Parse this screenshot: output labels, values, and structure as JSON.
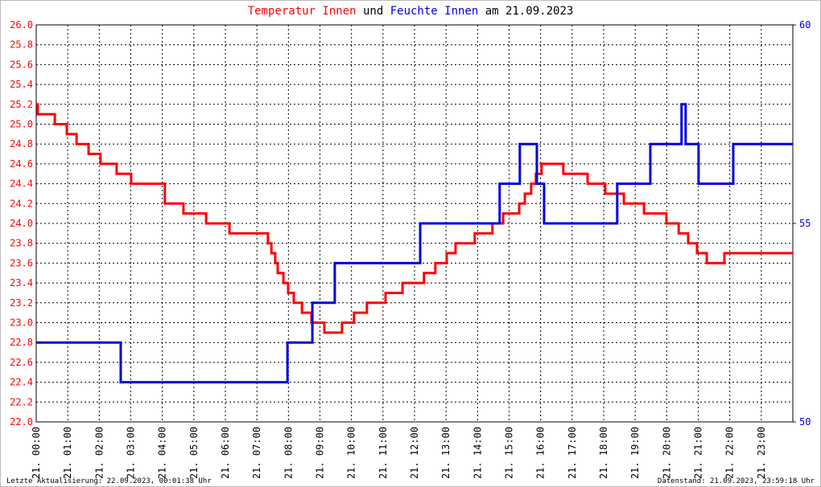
{
  "chart_data": {
    "type": "line",
    "step": true,
    "title_parts": [
      "und",
      "am 21.09.2023"
    ],
    "footer_left": "Letzte Aktualisierung: 22.09.2023, 00:01:38 Uhr",
    "footer_right": "Datenstand: 21.09.2023, 23:59:18 Uhr",
    "grid": true,
    "xlim": [
      0,
      24
    ],
    "xticks": [
      {
        "value": 0,
        "label": "21. 00:00"
      },
      {
        "value": 1,
        "label": "21. 01:00"
      },
      {
        "value": 2,
        "label": "21. 02:00"
      },
      {
        "value": 3,
        "label": "21. 03:00"
      },
      {
        "value": 4,
        "label": "21. 04:00"
      },
      {
        "value": 5,
        "label": "21. 05:00"
      },
      {
        "value": 6,
        "label": "21. 06:00"
      },
      {
        "value": 7,
        "label": "21. 07:00"
      },
      {
        "value": 8,
        "label": "21. 08:00"
      },
      {
        "value": 9,
        "label": "21. 09:00"
      },
      {
        "value": 10,
        "label": "21. 10:00"
      },
      {
        "value": 11,
        "label": "21. 11:00"
      },
      {
        "value": 12,
        "label": "21. 12:00"
      },
      {
        "value": 13,
        "label": "21. 13:00"
      },
      {
        "value": 14,
        "label": "21. 14:00"
      },
      {
        "value": 15,
        "label": "21. 15:00"
      },
      {
        "value": 16,
        "label": "21. 16:00"
      },
      {
        "value": 17,
        "label": "21. 17:00"
      },
      {
        "value": 18,
        "label": "21. 18:00"
      },
      {
        "value": 19,
        "label": "21. 19:00"
      },
      {
        "value": 20,
        "label": "21. 20:00"
      },
      {
        "value": 21,
        "label": "21. 21:00"
      },
      {
        "value": 22,
        "label": "21. 22:00"
      },
      {
        "value": 23,
        "label": "21. 23:00"
      }
    ],
    "ylim": [
      22,
      26
    ],
    "yticks": [
      {
        "value": 22,
        "label": "22.0"
      },
      {
        "value": 22.2,
        "label": "22.2"
      },
      {
        "value": 22.4,
        "label": "22.4"
      },
      {
        "value": 22.6,
        "label": "22.6"
      },
      {
        "value": 22.8,
        "label": "22.8"
      },
      {
        "value": 23,
        "label": "23.0"
      },
      {
        "value": 23.2,
        "label": "23.2"
      },
      {
        "value": 23.4,
        "label": "23.4"
      },
      {
        "value": 23.6,
        "label": "23.6"
      },
      {
        "value": 23.8,
        "label": "23.8"
      },
      {
        "value": 24,
        "label": "24.0"
      },
      {
        "value": 24.2,
        "label": "24.2"
      },
      {
        "value": 24.4,
        "label": "24.4"
      },
      {
        "value": 24.6,
        "label": "24.6"
      },
      {
        "value": 24.8,
        "label": "24.8"
      },
      {
        "value": 25,
        "label": "25.0"
      },
      {
        "value": 25.2,
        "label": "25.2"
      },
      {
        "value": 25.4,
        "label": "25.4"
      },
      {
        "value": 25.6,
        "label": "25.6"
      },
      {
        "value": 25.8,
        "label": "25.8"
      },
      {
        "value": 26,
        "label": "26.0"
      }
    ],
    "y2lim": [
      50,
      60
    ],
    "y2ticks": [
      50,
      55,
      60
    ],
    "series": [
      {
        "name": "Temperatur Innen",
        "color": "#ff0000",
        "axis": "y",
        "x": [
          0,
          0.05,
          0.59,
          0.97,
          1.28,
          1.66,
          2.04,
          2.55,
          3.01,
          4.08,
          4.67,
          5.39,
          6.13,
          7.35,
          7.46,
          7.58,
          7.66,
          7.84,
          7.99,
          8.17,
          8.43,
          8.73,
          9.14,
          9.7,
          10.08,
          10.49,
          11.08,
          11.62,
          12.3,
          12.66,
          13.02,
          13.3,
          13.91,
          14.47,
          14.81,
          15.32,
          15.5,
          15.7,
          15.85,
          16.03,
          16.72,
          17.49,
          18.05,
          18.64,
          19.28,
          19.99,
          20.38,
          20.68,
          20.96,
          21.27,
          21.83,
          24
        ],
        "values": [
          25.2,
          25.1,
          25.0,
          24.9,
          24.8,
          24.7,
          24.6,
          24.5,
          24.4,
          24.2,
          24.1,
          24.0,
          23.9,
          23.8,
          23.7,
          23.6,
          23.5,
          23.4,
          23.3,
          23.2,
          23.1,
          23.0,
          22.9,
          23.0,
          23.1,
          23.2,
          23.3,
          23.4,
          23.5,
          23.6,
          23.7,
          23.8,
          23.9,
          24.0,
          24.1,
          24.2,
          24.3,
          24.4,
          24.5,
          24.6,
          24.5,
          24.4,
          24.3,
          24.2,
          24.1,
          24.0,
          23.9,
          23.8,
          23.7,
          23.6,
          23.7,
          23.7
        ]
      },
      {
        "name": "Feuchte Innen",
        "color": "#0000dd",
        "axis": "y2",
        "x": [
          0,
          2.68,
          7.97,
          8.76,
          9.47,
          12.18,
          14.7,
          15.34,
          15.88,
          16.11,
          18.43,
          19.48,
          20.47,
          20.6,
          21.01,
          22.11,
          24
        ],
        "values": [
          52,
          51,
          52,
          53,
          54,
          55,
          56,
          57,
          56,
          55,
          56,
          57,
          58,
          57,
          56,
          57,
          57
        ]
      }
    ]
  }
}
